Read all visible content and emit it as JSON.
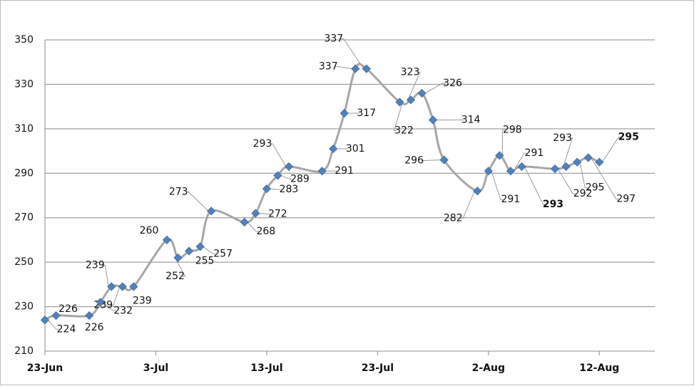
{
  "chart_data": {
    "type": "line",
    "x": [
      "23-Jun",
      "24-Jun",
      "27-Jun",
      "28-Jun",
      "29-Jun",
      "30-Jun",
      "1-Jul",
      "4-Jul",
      "5-Jul",
      "6-Jul",
      "7-Jul",
      "8-Jul",
      "11-Jul",
      "12-Jul",
      "13-Jul",
      "14-Jul",
      "15-Jul",
      "18-Jul",
      "19-Jul",
      "20-Jul",
      "21-Jul",
      "22-Jul",
      "25-Jul",
      "26-Jul",
      "27-Jul",
      "28-Jul",
      "29-Jul",
      "1-Aug",
      "2-Aug",
      "3-Aug",
      "4-Aug",
      "5-Aug",
      "8-Aug",
      "9-Aug",
      "10-Aug",
      "11-Aug",
      "12-Aug"
    ],
    "series": [
      {
        "color": "#4f81bd",
        "line_color": "#a6a6a6",
        "values": [
          224,
          226,
          226,
          232,
          239,
          239,
          239,
          260,
          252,
          255,
          257,
          273,
          268,
          272,
          283,
          289,
          293,
          291,
          301,
          317,
          337,
          337,
          322,
          323,
          326,
          314,
          296,
          282,
          291,
          298,
          291,
          293,
          292,
          293,
          295,
          297,
          295
        ]
      }
    ],
    "xlim": [
      "23-Jun",
      "17-Aug"
    ],
    "xticks": [
      "23-Jun",
      "3-Jul",
      "13-Jul",
      "23-Jul",
      "2-Aug",
      "12-Aug"
    ],
    "ylim": [
      210,
      350
    ],
    "yticks": [
      210,
      230,
      250,
      270,
      290,
      310,
      330,
      350
    ],
    "grid": true
  }
}
